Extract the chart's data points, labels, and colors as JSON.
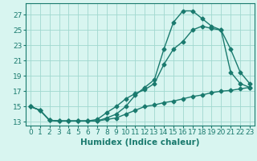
{
  "line1_x": [
    0,
    1,
    2,
    3,
    4,
    5,
    6,
    7,
    8,
    9,
    10,
    11,
    12,
    13,
    14,
    15,
    16,
    17,
    18,
    19,
    20,
    21,
    22,
    23
  ],
  "line1_y": [
    15.0,
    14.5,
    13.2,
    13.1,
    13.1,
    13.1,
    13.1,
    13.1,
    13.5,
    14.0,
    15.0,
    16.5,
    17.5,
    18.5,
    22.5,
    26.0,
    27.5,
    27.5,
    26.5,
    25.5,
    25.0,
    19.5,
    18.0,
    17.5
  ],
  "line2_x": [
    0,
    1,
    2,
    3,
    4,
    5,
    6,
    7,
    8,
    9,
    10,
    11,
    12,
    13,
    14,
    15,
    16,
    17,
    18,
    19,
    20,
    21,
    22,
    23
  ],
  "line2_y": [
    15.0,
    14.5,
    13.2,
    13.1,
    13.1,
    13.1,
    13.1,
    13.3,
    14.2,
    15.0,
    16.0,
    16.7,
    17.2,
    18.0,
    20.5,
    22.5,
    23.5,
    25.0,
    25.5,
    25.2,
    25.0,
    22.5,
    19.5,
    18.0
  ],
  "line3_x": [
    0,
    1,
    2,
    3,
    4,
    5,
    6,
    7,
    8,
    9,
    10,
    11,
    12,
    13,
    14,
    15,
    16,
    17,
    18,
    19,
    20,
    21,
    22,
    23
  ],
  "line3_y": [
    15.0,
    14.5,
    13.2,
    13.1,
    13.1,
    13.1,
    13.1,
    13.1,
    13.3,
    13.5,
    14.0,
    14.5,
    15.0,
    15.2,
    15.5,
    15.7,
    16.0,
    16.3,
    16.5,
    16.8,
    17.0,
    17.1,
    17.3,
    17.5
  ],
  "line_color": "#1a7a6e",
  "bg_color": "#d8f5f0",
  "grid_color": "#a0d8cf",
  "xlabel": "Humidex (Indice chaleur)",
  "ylim": [
    12.5,
    28.5
  ],
  "xlim": [
    -0.5,
    23.5
  ],
  "yticks": [
    13,
    15,
    17,
    19,
    21,
    23,
    25,
    27
  ],
  "xticks": [
    0,
    1,
    2,
    3,
    4,
    5,
    6,
    7,
    8,
    9,
    10,
    11,
    12,
    13,
    14,
    15,
    16,
    17,
    18,
    19,
    20,
    21,
    22,
    23
  ],
  "marker": "D",
  "markersize": 2.5,
  "linewidth": 1.0,
  "xlabel_fontsize": 7.5,
  "tick_fontsize": 6.5
}
